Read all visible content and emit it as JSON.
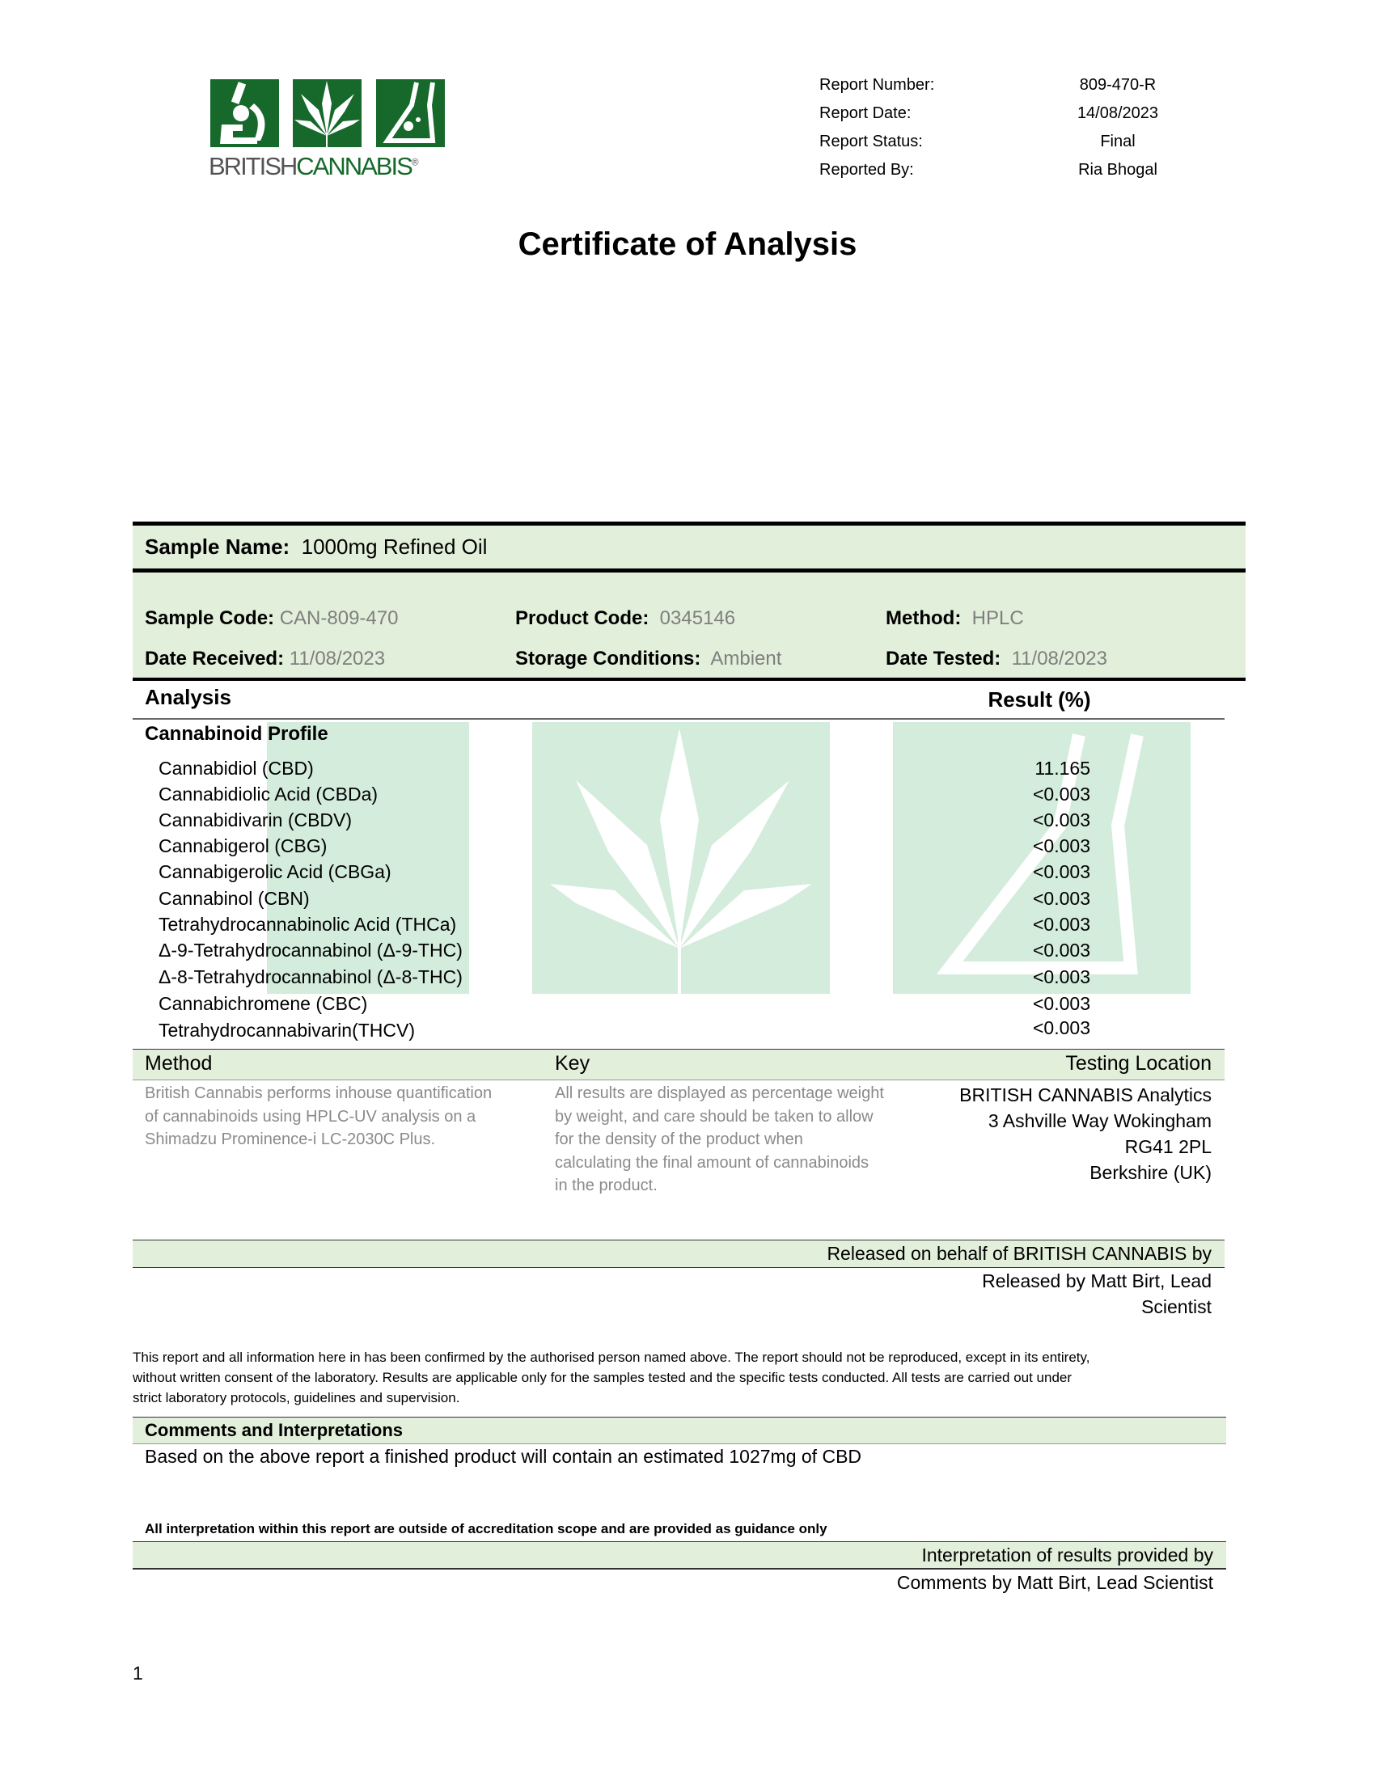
{
  "logo": {
    "text_left": "BRITISH",
    "text_right": "CANNABIS",
    "registered": "®"
  },
  "report_meta": [
    {
      "label": "Report Number:",
      "value": "809-470-R"
    },
    {
      "label": "Report Date:",
      "value": "14/08/2023"
    },
    {
      "label": "Report Status:",
      "value": "Final"
    },
    {
      "label": "Reported By:",
      "value": "Ria Bhogal"
    }
  ],
  "title": "Certificate of Analysis",
  "sample": {
    "name_label": "Sample Name:",
    "name_value": "1000mg Refined Oil",
    "code_label": "Sample Code:",
    "code_value": "CAN-809-470",
    "product_label": "Product Code:",
    "product_value": "0345146",
    "method_label": "Method:",
    "method_value": "HPLC",
    "received_label": "Date Received:",
    "received_value": "11/08/2023",
    "storage_label": "Storage Conditions:",
    "storage_value": "Ambient",
    "tested_label": "Date Tested:",
    "tested_value": "11/08/2023"
  },
  "analysis": {
    "header": "Analysis",
    "result_header": "Result (%)",
    "section": "Cannabinoid Profile",
    "rows": [
      {
        "name": "Cannabidiol (CBD)",
        "value": "11.165"
      },
      {
        "name": "Cannabidiolic Acid (CBDa)",
        "value": "<0.003"
      },
      {
        "name": "Cannabidivarin (CBDV)",
        "value": "<0.003"
      },
      {
        "name": "Cannabigerol (CBG)",
        "value": "<0.003"
      },
      {
        "name": "Cannabigerolic Acid (CBGa)",
        "value": "<0.003"
      },
      {
        "name": "Cannabinol (CBN)",
        "value": "<0.003"
      },
      {
        "name": "Tetrahydrocannabinolic Acid (THCa)",
        "value": "<0.003"
      },
      {
        "name": "Δ-9-Tetrahydrocannabinol (Δ-9-THC)",
        "value": "<0.003"
      },
      {
        "name": "Δ-8-Tetrahydrocannabinol (Δ-8-THC)",
        "value": "<0.003"
      },
      {
        "name": "Cannabichromene (CBC)",
        "value": "<0.003"
      },
      {
        "name": "Tetrahydrocannabivarin(THCV)",
        "value": "<0.003"
      }
    ]
  },
  "info": {
    "method_header": "Method",
    "key_header": "Key",
    "location_header": "Testing Location",
    "method_lines": [
      "British Cannabis performs inhouse quantification",
      "of cannabinoids using HPLC-UV analysis on a",
      "Shimadzu Prominence-i LC-2030C Plus."
    ],
    "key_lines": [
      "All results are displayed as percentage weight",
      "by weight, and care should be taken to allow",
      "for the density of the product when",
      "calculating the final amount of cannabinoids",
      "in the product."
    ],
    "location_lines": [
      "BRITISH CANNABIS Analytics",
      "3 Ashville Way Wokingham",
      "RG41 2PL",
      "Berkshire (UK)"
    ]
  },
  "release": {
    "band": "Released on behalf of BRITISH CANNABIS by",
    "line1": "Released by Matt Birt, Lead",
    "line2": "Scientist"
  },
  "disclaimer": [
    "This report and all information here in has been confirmed by the authorised person named above. The report should not be reproduced, except in its entirety,",
    "without written consent of the laboratory. Results are applicable only for the samples tested and the specific tests conducted. All tests are carried out under",
    "strict laboratory protocols, guidelines and supervision."
  ],
  "comments": {
    "header": "Comments and Interpretations",
    "text": "Based on the above report a finished product will contain an estimated 1027mg of CBD",
    "scope_note": "All interpretation within this report are outside of accreditation scope and are provided as guidance only",
    "band": "Interpretation of results provided by",
    "by": "Comments by Matt Birt, Lead Scientist"
  },
  "page_number": "1",
  "colors": {
    "brand_green": "#16692b",
    "band_green": "#e2efda",
    "watermark_green": "#d3ecdc"
  }
}
